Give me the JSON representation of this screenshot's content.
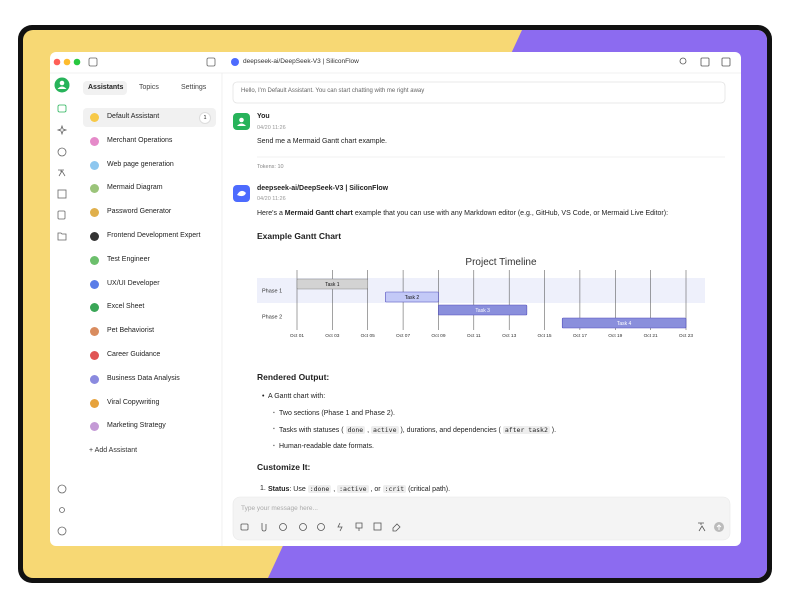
{
  "window": {
    "title": "deepseek-ai/DeepSeek-V3 | SiliconFlow"
  },
  "sidebar": {
    "tabs": [
      "Assistants",
      "Topics",
      "Settings"
    ],
    "assistants": [
      {
        "name": "Default Assistant",
        "badge": 1
      },
      {
        "name": "Merchant Operations"
      },
      {
        "name": "Web page generation"
      },
      {
        "name": "Mermaid Diagram"
      },
      {
        "name": "Password Generator"
      },
      {
        "name": "Frontend Development Expert"
      },
      {
        "name": "Test Engineer"
      },
      {
        "name": "UX/UI Developer"
      },
      {
        "name": "Excel Sheet"
      },
      {
        "name": "Pet Behaviorist"
      },
      {
        "name": "Career Guidance"
      },
      {
        "name": "Business Data Analysis"
      },
      {
        "name": "Viral Copywriting"
      },
      {
        "name": "Marketing Strategy"
      }
    ],
    "add_button": "+ Add Assistant"
  },
  "chat": {
    "hint": "Hello, I'm Default Assistant. You can start chatting with me right away",
    "user": {
      "author": "You",
      "time": "04/20 11:26",
      "text": "Send me a Mermaid Gantt chart example.",
      "tokens": "Tokens: 10"
    },
    "response": {
      "author": "deepseek-ai/DeepSeek-V3 | SiliconFlow",
      "time": "04/20 11:26",
      "intro": [
        {
          "text": "Here's a "
        },
        {
          "text": "Mermaid Gantt chart",
          "bold": true
        },
        {
          "text": " example that you can use with any Markdown editor (e.g., GitHub, VS Code, or Mermaid Live Editor):"
        }
      ],
      "chart_heading": "Example Gantt Chart",
      "rendered_heading": "Rendered Output:",
      "bullet": "A Gantt chart with:",
      "sub_bullets": [
        [
          {
            "text": "Two sections (Phase 1 and Phase 2)."
          }
        ],
        [
          {
            "text": "Tasks with statuses ( "
          },
          {
            "text": "done",
            "code": true
          },
          {
            "text": " , "
          },
          {
            "text": "active",
            "code": true
          },
          {
            "text": " ), durations, and dependencies ( "
          },
          {
            "text": "after task2",
            "code": true
          },
          {
            "text": " )."
          }
        ],
        [
          {
            "text": "Human-readable date formats."
          }
        ]
      ],
      "customize_heading": "Customize It:",
      "customize_items": [
        {
          "marker": "1.",
          "segments": [
            {
              "text": "Status",
              "bold": true
            },
            {
              "text": ": Use "
            },
            {
              "text": ":done",
              "code": true
            },
            {
              "text": " , "
            },
            {
              "text": ":active",
              "code": true
            },
            {
              "text": " , or "
            },
            {
              "text": ":crit",
              "code": true
            },
            {
              "text": " (critical path)."
            }
          ]
        }
      ]
    }
  },
  "input": {
    "placeholder": "Type your message here..."
  },
  "chart_data": {
    "type": "gantt",
    "title": "Project Timeline",
    "xlim": [
      1,
      23
    ],
    "xticks": [
      {
        "value": 1,
        "label": "Oct 01"
      },
      {
        "value": 3,
        "label": "Oct 03"
      },
      {
        "value": 5,
        "label": "Oct 05"
      },
      {
        "value": 7,
        "label": "Oct 07"
      },
      {
        "value": 9,
        "label": "Oct 09"
      },
      {
        "value": 11,
        "label": "Oct 11"
      },
      {
        "value": 13,
        "label": "Oct 13"
      },
      {
        "value": 15,
        "label": "Oct 15"
      },
      {
        "value": 17,
        "label": "Oct 17"
      },
      {
        "value": 19,
        "label": "Oct 19"
      },
      {
        "value": 21,
        "label": "Oct 21"
      },
      {
        "value": 23,
        "label": "Oct 23"
      }
    ],
    "grid": true,
    "colors": {
      "done": "#d3d3d3",
      "active": "#c3c9f7",
      "default": "#8a8fdc"
    },
    "sections": [
      {
        "name": "Phase 1",
        "tasks": [
          {
            "name": "Task 1",
            "start": 1,
            "end": 5,
            "status": "done"
          },
          {
            "name": "Task 2",
            "start": 6,
            "end": 9,
            "status": "active"
          }
        ]
      },
      {
        "name": "Phase 2",
        "tasks": [
          {
            "name": "Task 3",
            "start": 9,
            "end": 14
          },
          {
            "name": "Task 4",
            "start": 16,
            "end": 23
          }
        ]
      }
    ]
  }
}
